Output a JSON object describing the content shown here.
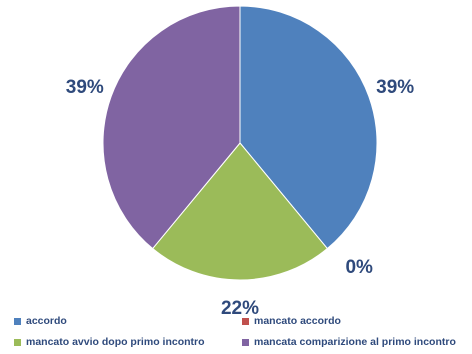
{
  "chart_data": {
    "type": "pie",
    "title": "",
    "slices": [
      {
        "label": "accordo",
        "value": 39,
        "display": "39%",
        "color": "#4f81bd"
      },
      {
        "label": "mancato accordo",
        "value": 0,
        "display": "0%",
        "color": "#c0504d"
      },
      {
        "label": "mancato avvio dopo primo incontro",
        "value": 22,
        "display": "22%",
        "color": "#9bbb59"
      },
      {
        "label": "mancata comparizione al primo incontro",
        "value": 39,
        "display": "39%",
        "color": "#8064a2"
      }
    ],
    "legend_position": "bottom"
  }
}
